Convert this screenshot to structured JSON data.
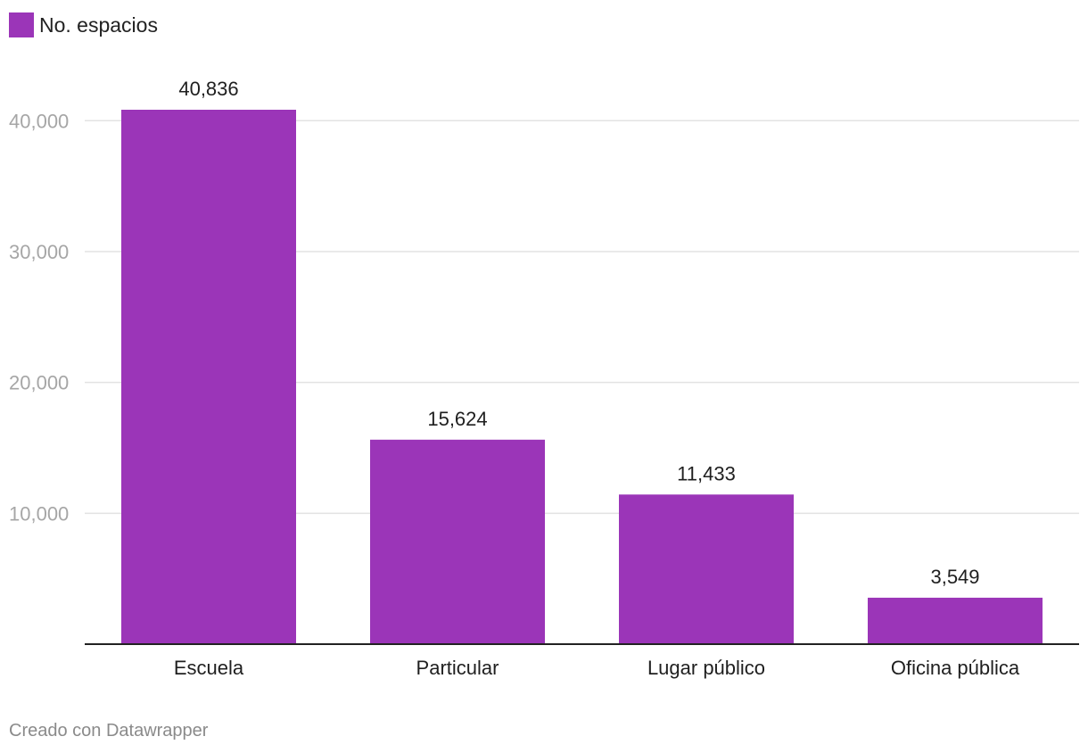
{
  "chart_data": {
    "type": "bar",
    "categories": [
      "Escuela",
      "Particular",
      "Lugar público",
      "Oficina pública"
    ],
    "series": [
      {
        "name": "No. espacios",
        "values": [
          40836,
          15624,
          11433,
          3549
        ],
        "color": "#9b35b8"
      }
    ],
    "value_labels": [
      "40,836",
      "15,624",
      "11,433",
      "3,549"
    ],
    "y_ticks": [
      10000,
      20000,
      30000,
      40000
    ],
    "y_tick_labels": [
      "10,000",
      "20,000",
      "30,000",
      "40,000"
    ],
    "ylim": [
      0,
      40836
    ],
    "grid": true,
    "legend": "top-left"
  },
  "footer": {
    "credit": "Creado con Datawrapper"
  }
}
